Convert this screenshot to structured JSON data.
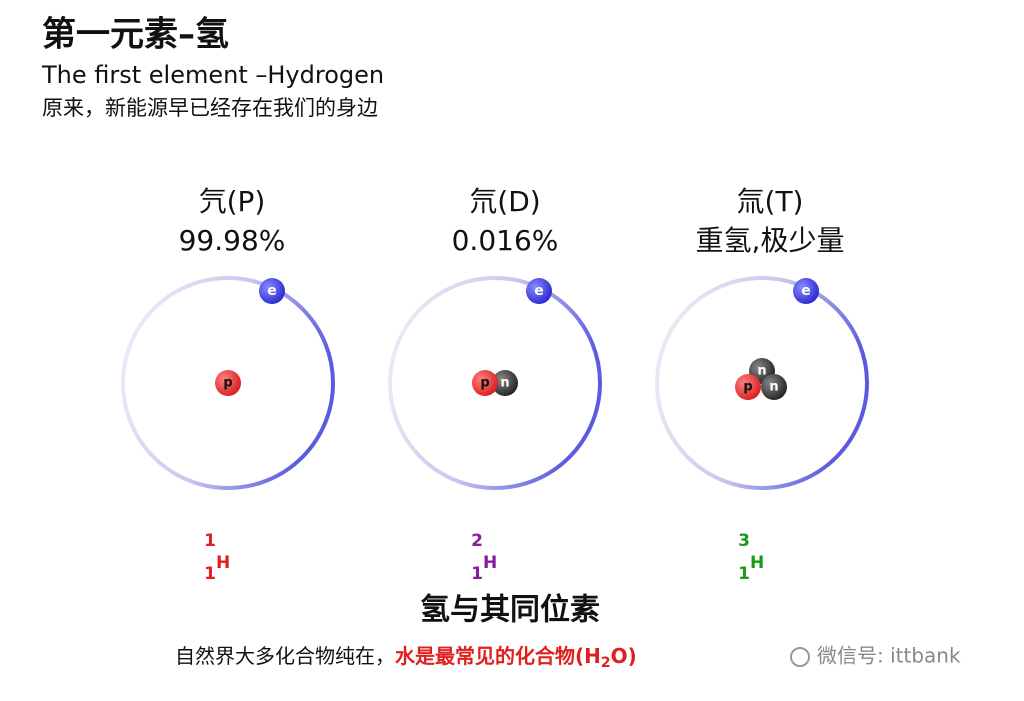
{
  "header": {
    "title": "第一元素–氢",
    "subtitle": "The first element –Hydrogen",
    "description": "原来，新能源早已经存在我们的身边"
  },
  "isotopes": [
    {
      "name": "氕(P)",
      "abundance": "99.98%",
      "nucleus": [
        "p"
      ],
      "electron": "e",
      "mass_number": "1",
      "atomic_number": "1",
      "symbol": "H"
    },
    {
      "name": "氘(D)",
      "abundance": "0.016%",
      "nucleus": [
        "p",
        "n"
      ],
      "electron": "e",
      "mass_number": "2",
      "atomic_number": "1",
      "symbol": "H"
    },
    {
      "name": "氚(T)",
      "abundance": "重氢,极少量",
      "nucleus": [
        "p",
        "n",
        "n"
      ],
      "electron": "e",
      "mass_number": "3",
      "atomic_number": "1",
      "symbol": "H"
    }
  ],
  "footer": {
    "title": "氢与其同位素",
    "caption": "自然界大多化合物纯在，",
    "highlight": "水是最常见的化合物(H",
    "subscript": "2",
    "highlight_end": "O)"
  },
  "watermark": "微信号: ittbank"
}
